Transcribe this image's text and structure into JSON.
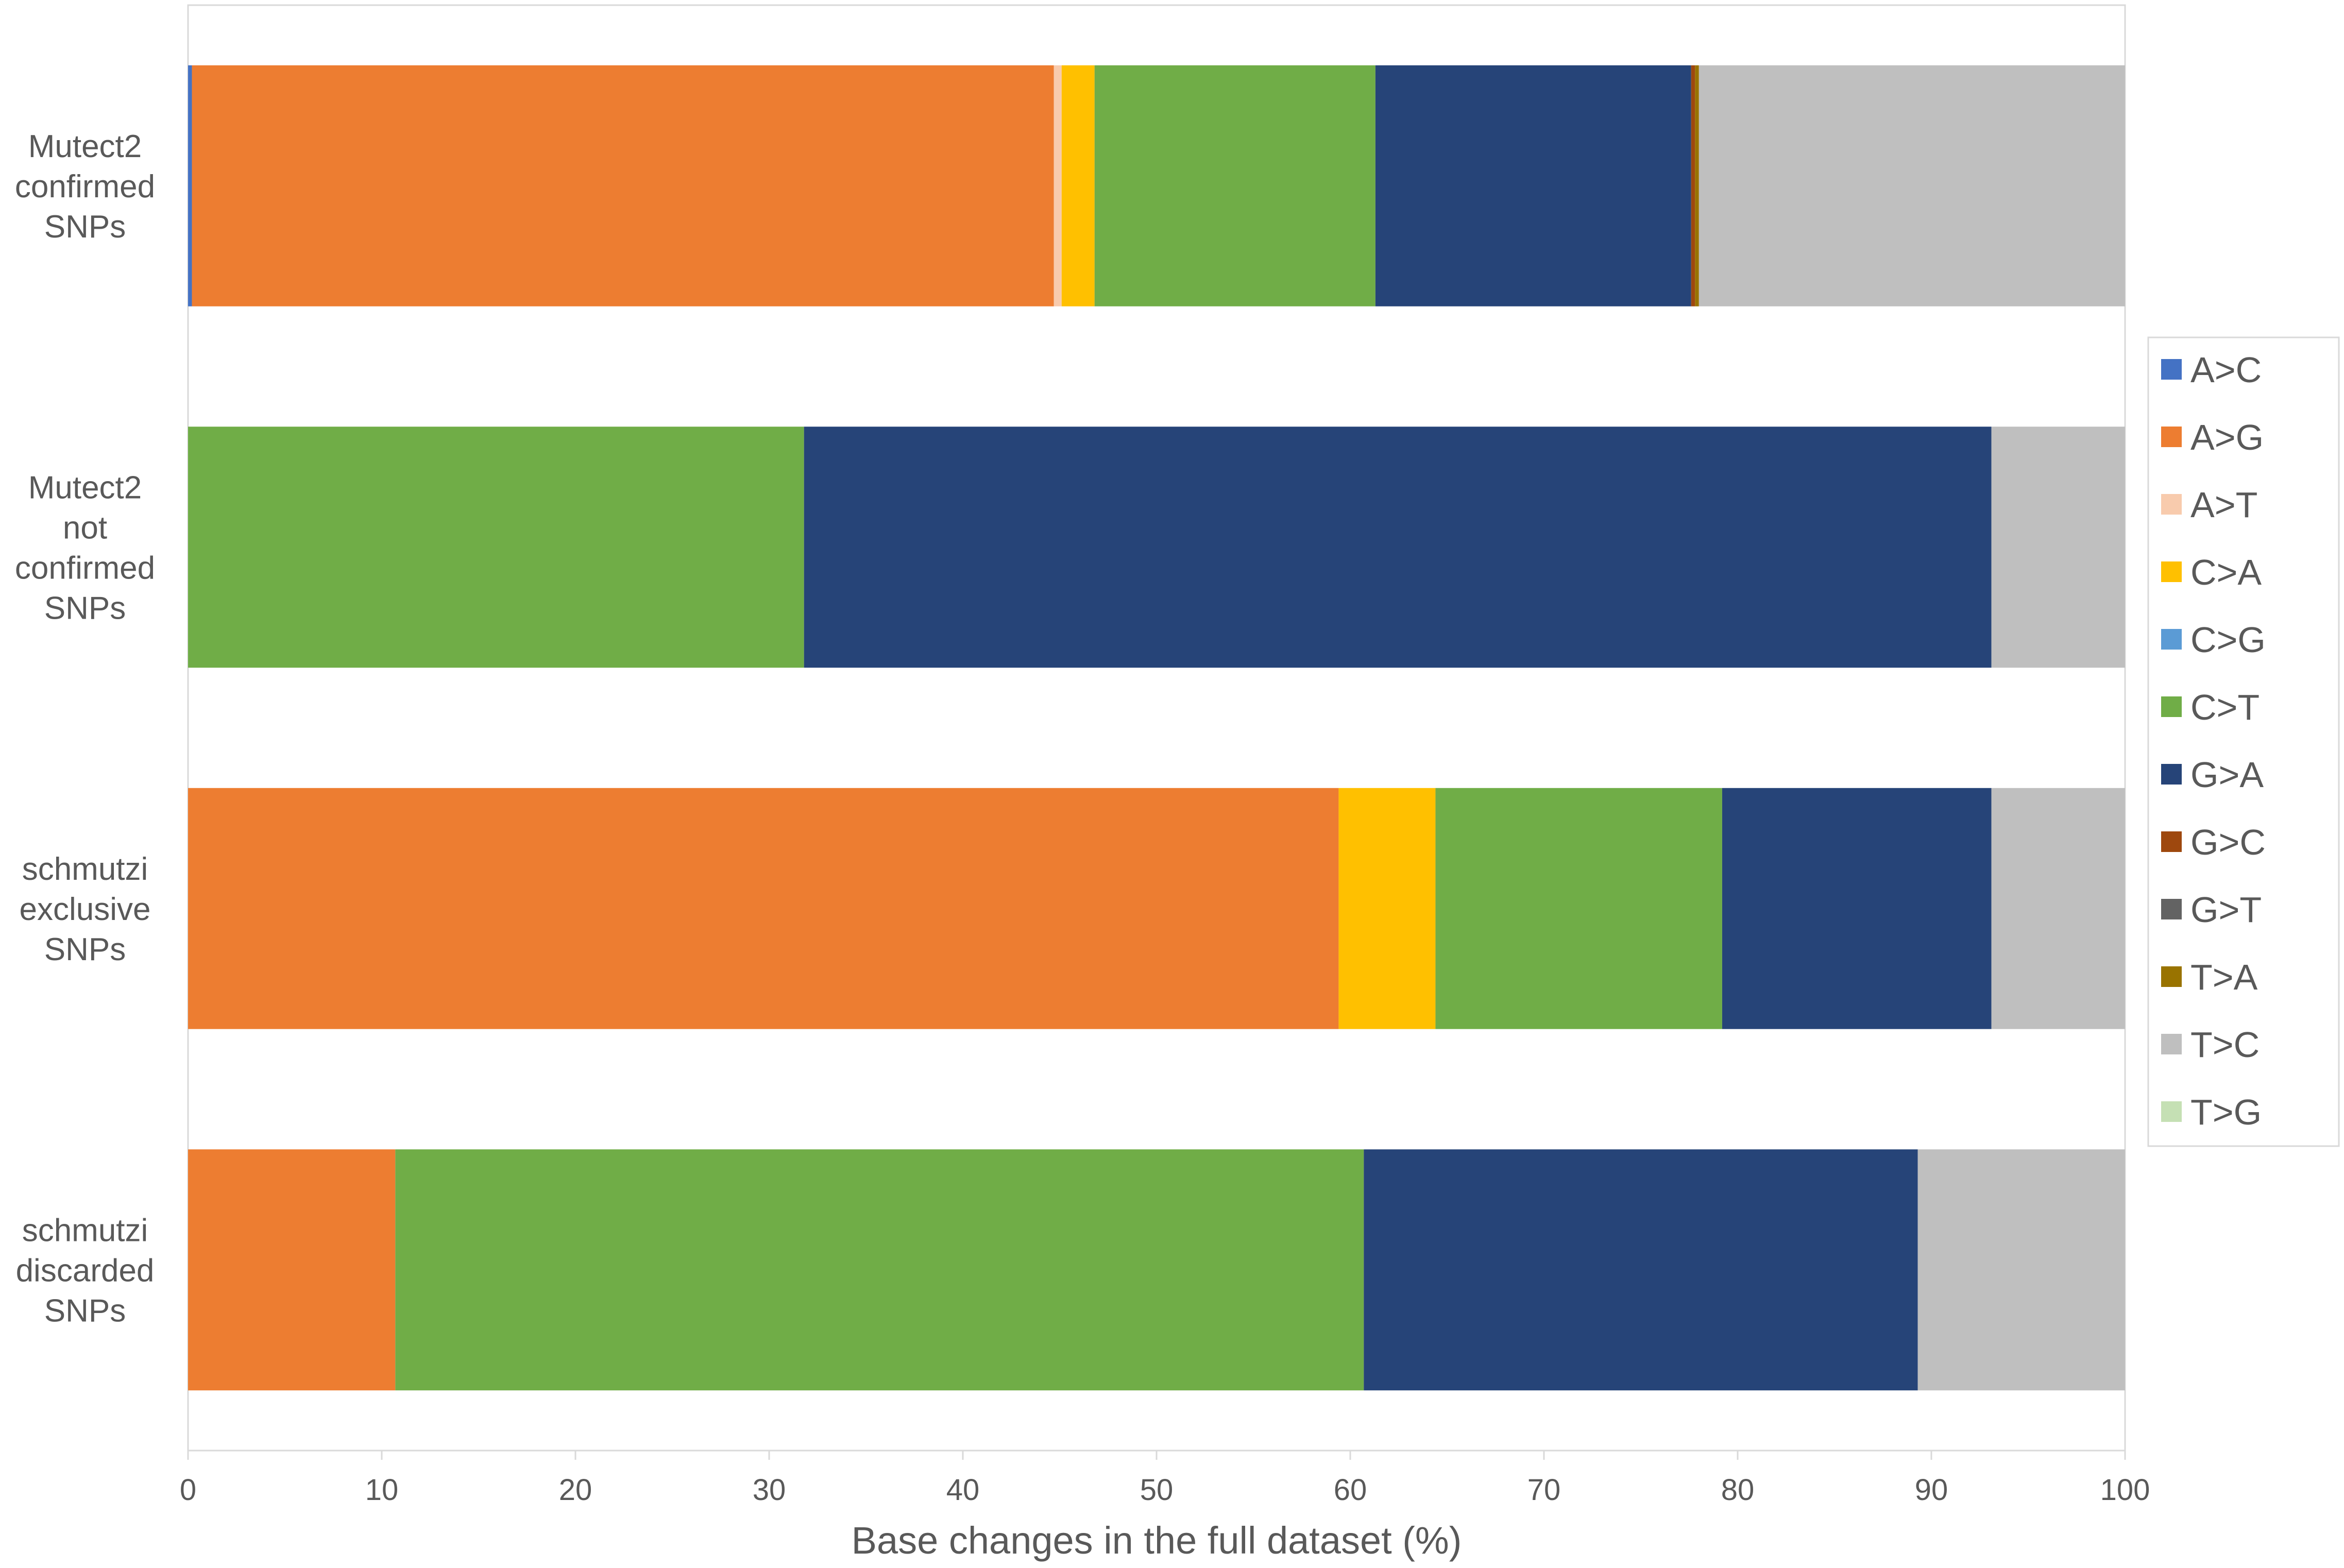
{
  "chart_data": {
    "type": "bar",
    "orientation": "horizontal",
    "stacked": true,
    "title": "",
    "xlabel": "Base changes in the full dataset (%)",
    "ylabel": "",
    "xlim": [
      0,
      100
    ],
    "xticks": [
      0,
      10,
      20,
      30,
      40,
      50,
      60,
      70,
      80,
      90,
      100
    ],
    "grid": false,
    "legend_position": "right",
    "categories": [
      [
        "Mutect2",
        "confirmed",
        "SNPs"
      ],
      [
        "Mutect2",
        "not",
        "confirmed",
        "SNPs"
      ],
      [
        "schmutzi",
        "exclusive",
        "SNPs"
      ],
      [
        "schmutzi",
        "discarded",
        "SNPs"
      ]
    ],
    "series": [
      {
        "name": "A>C",
        "color": "#4472C4",
        "values": [
          0.2,
          0,
          0,
          0
        ]
      },
      {
        "name": "A>G",
        "color": "#ED7D31",
        "values": [
          44.5,
          0,
          59.4,
          10.7
        ]
      },
      {
        "name": "A>T",
        "color": "#F8CBAD",
        "values": [
          0.4,
          0,
          0,
          0
        ]
      },
      {
        "name": "C>A",
        "color": "#FFC000",
        "values": [
          1.7,
          0,
          5.0,
          0
        ]
      },
      {
        "name": "C>G",
        "color": "#5B9BD5",
        "values": [
          0,
          0,
          0,
          0
        ]
      },
      {
        "name": "C>T",
        "color": "#70AD47",
        "values": [
          14.5,
          31.8,
          14.8,
          50.0
        ]
      },
      {
        "name": "G>A",
        "color": "#264478",
        "values": [
          16.3,
          61.3,
          13.9,
          28.6
        ]
      },
      {
        "name": "G>C",
        "color": "#9E480E",
        "values": [
          0.2,
          0,
          0,
          0
        ]
      },
      {
        "name": "G>T",
        "color": "#636363",
        "values": [
          0,
          0,
          0,
          0
        ]
      },
      {
        "name": "T>A",
        "color": "#997300",
        "values": [
          0.2,
          0,
          0,
          0
        ]
      },
      {
        "name": "T>C",
        "color": "#BFBFBF",
        "values": [
          22.0,
          6.9,
          6.9,
          10.7
        ]
      },
      {
        "name": "T>G",
        "color": "#C5E0B4",
        "values": [
          0,
          0,
          0,
          0
        ]
      }
    ]
  }
}
